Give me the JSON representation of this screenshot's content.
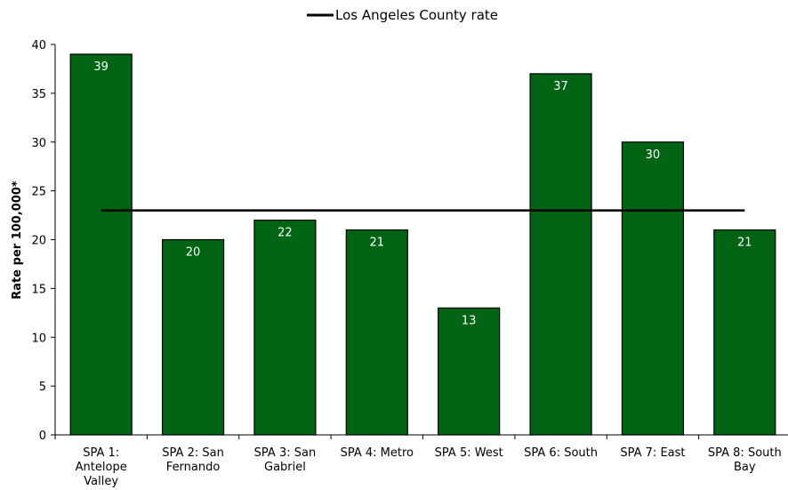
{
  "chart_data": {
    "type": "bar",
    "categories": [
      [
        "SPA 1:",
        "Antelope",
        "Valley"
      ],
      [
        "SPA 2: San",
        "Fernando"
      ],
      [
        "SPA 3: San",
        "Gabriel"
      ],
      [
        "SPA 4: Metro"
      ],
      [
        "SPA 5: West"
      ],
      [
        "SPA 6: South"
      ],
      [
        "SPA 7: East"
      ],
      [
        "SPA 8: South",
        "Bay"
      ]
    ],
    "series": [
      {
        "values": [
          39,
          20,
          22,
          21,
          13,
          37,
          30,
          21
        ],
        "color": "#006414"
      }
    ],
    "reference_line": {
      "name": "Los Angeles County rate",
      "value": 23,
      "color": "#000000"
    },
    "ylabel": "Rate per 100,000*",
    "xlabel": "",
    "ylim": [
      0,
      40
    ],
    "yticks": [
      0,
      5,
      10,
      15,
      20,
      25,
      30,
      35,
      40
    ],
    "legend_position": "top-center",
    "grid": false
  }
}
